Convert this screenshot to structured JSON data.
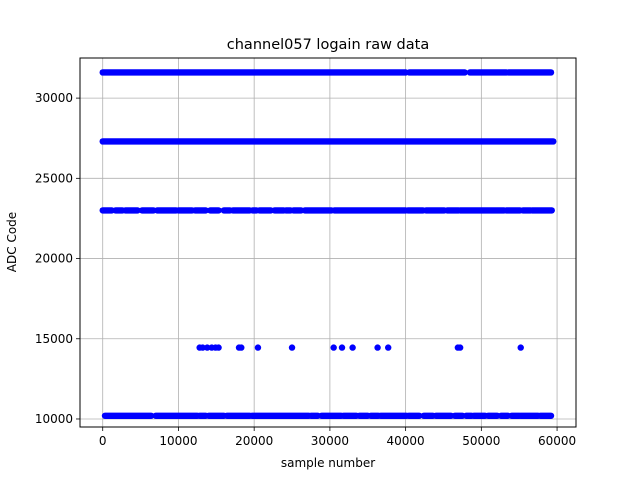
{
  "chart_data": {
    "type": "scatter",
    "title": "channel057 logain raw data",
    "xlabel": "sample number",
    "ylabel": "ADC Code",
    "xlim": [
      -3000,
      62500
    ],
    "ylim": [
      9500,
      32500
    ],
    "xticks": [
      0,
      10000,
      20000,
      30000,
      40000,
      50000,
      60000
    ],
    "yticks": [
      10000,
      15000,
      20000,
      25000,
      30000
    ],
    "grid": true,
    "marker_color": "#0000ff",
    "levels": [
      {
        "y": 31600,
        "segments": [
          [
            0,
            40000
          ],
          [
            40500,
            47800
          ],
          [
            48500,
            53300
          ],
          [
            53600,
            59200
          ]
        ]
      },
      {
        "y": 27300,
        "segments": [
          [
            0,
            59500
          ]
        ]
      },
      {
        "y": 23000,
        "segments": [
          [
            0,
            1200
          ],
          [
            1700,
            2600
          ],
          [
            3000,
            4600
          ],
          [
            5200,
            6700
          ],
          [
            7200,
            9700
          ],
          [
            10000,
            11800
          ],
          [
            12200,
            13600
          ],
          [
            14200,
            15300
          ],
          [
            16000,
            16800
          ],
          [
            17200,
            19400
          ],
          [
            19800,
            20300
          ],
          [
            20700,
            22200
          ],
          [
            22700,
            23900
          ],
          [
            24200,
            24800
          ],
          [
            25200,
            26200
          ],
          [
            26700,
            30200
          ],
          [
            30600,
            40000
          ],
          [
            40300,
            42300
          ],
          [
            42700,
            45100
          ],
          [
            45500,
            47000
          ],
          [
            47200,
            53000
          ],
          [
            53300,
            55100
          ],
          [
            55500,
            56500
          ],
          [
            56700,
            59300
          ]
        ]
      },
      {
        "y": 14450,
        "points": [
          12800,
          13200,
          13800,
          14400,
          14900,
          15300,
          18000,
          18300,
          20500,
          25000,
          30500,
          31600,
          33000,
          36300,
          37700,
          46900,
          47200,
          55200
        ]
      },
      {
        "y": 10200,
        "segments": [
          [
            300,
            6400
          ],
          [
            7000,
            12500
          ],
          [
            12800,
            13600
          ],
          [
            14000,
            16000
          ],
          [
            16400,
            19400
          ],
          [
            19700,
            27200
          ],
          [
            27500,
            28400
          ],
          [
            28900,
            31500
          ],
          [
            31800,
            33500
          ],
          [
            33900,
            35000
          ],
          [
            35400,
            36400
          ],
          [
            36700,
            40100
          ],
          [
            40400,
            41800
          ],
          [
            42400,
            43600
          ],
          [
            44000,
            46000
          ],
          [
            46500,
            47500
          ],
          [
            48000,
            48700
          ],
          [
            49000,
            50500
          ],
          [
            50900,
            52100
          ],
          [
            52600,
            53500
          ],
          [
            54000,
            55000
          ],
          [
            55200,
            57500
          ],
          [
            57800,
            59200
          ]
        ]
      }
    ]
  }
}
